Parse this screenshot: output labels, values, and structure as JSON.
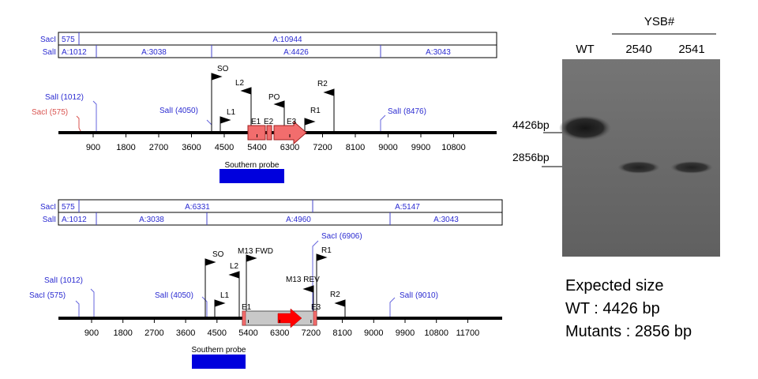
{
  "map_top": {
    "enzyme_table": {
      "rows": [
        {
          "enzyme": "SacI",
          "segments": [
            {
              "label": "575"
            },
            {
              "label": "A:10944"
            }
          ]
        },
        {
          "enzyme": "SalI",
          "segments": [
            {
              "label": "A:1012"
            },
            {
              "label": "A:3038"
            },
            {
              "label": "A:4426"
            },
            {
              "label": "A:3043"
            }
          ]
        }
      ]
    },
    "sites": {
      "sacI": "SacI (575)",
      "salI_1": "SalI (1012)",
      "salI_2": "SalI (4050)",
      "salI_3": "SalI (8476)"
    },
    "primers": {
      "so": "SO",
      "l2": "L2",
      "l1": "L1",
      "po": "PO",
      "r2": "R2",
      "r1": "R1"
    },
    "exons": {
      "e1": "E1",
      "e2": "E2",
      "e3": "E3"
    },
    "ticks": [
      "900",
      "1800",
      "2700",
      "3600",
      "4500",
      "5400",
      "6300",
      "7200",
      "8100",
      "9000",
      "9900",
      "10800"
    ],
    "probe_label": "Southern probe"
  },
  "map_bottom": {
    "enzyme_table": {
      "rows": [
        {
          "enzyme": "SacI",
          "segments": [
            {
              "label": "575"
            },
            {
              "label": "A:6331"
            },
            {
              "label": "A:5147"
            }
          ]
        },
        {
          "enzyme": "SalI",
          "segments": [
            {
              "label": "A:1012"
            },
            {
              "label": "A:3038"
            },
            {
              "label": "A:4960"
            },
            {
              "label": "A:3043"
            }
          ]
        }
      ]
    },
    "sites": {
      "sacI_1": "SacI (575)",
      "salI_1": "SalI (1012)",
      "salI_2": "SalI (4050)",
      "sacI_2": "SacI (6906)",
      "salI_3": "SalI (9010)"
    },
    "primers": {
      "so": "SO",
      "l2": "L2",
      "m13fwd": "M13 FWD",
      "l1": "L1",
      "r1": "R1",
      "m13rev": "M13 REV",
      "r2": "R2"
    },
    "exons": {
      "e1": "E1",
      "e3": "E3"
    },
    "ticks": [
      "900",
      "1800",
      "2700",
      "3600",
      "4500",
      "5400",
      "6300",
      "7200",
      "8100",
      "9000",
      "9900",
      "10800",
      "11700"
    ],
    "probe_label": "Southern probe"
  },
  "gel": {
    "group_label": "YSB#",
    "lanes": [
      {
        "label": "WT",
        "band_bp": 4426
      },
      {
        "label": "2540",
        "band_bp": 2856
      },
      {
        "label": "2541",
        "band_bp": 2856
      }
    ],
    "markers": [
      "4426bp",
      "2856bp"
    ]
  },
  "expected": {
    "title": "Expected size",
    "wt": "WT : 4426 bp",
    "mutants": "Mutants : 2856 bp"
  },
  "colors": {
    "site_label_blue": "#2b2bd1",
    "site_label_red": "#d9534f",
    "exon_fill": "#f26d6d",
    "cassette_fill": "#c8c8c8",
    "cassette_arrow": "#ff0000",
    "probe_fill": "#0000dd",
    "table_text": "#2b2bd1",
    "gel_bg": "#6b6b6b"
  }
}
